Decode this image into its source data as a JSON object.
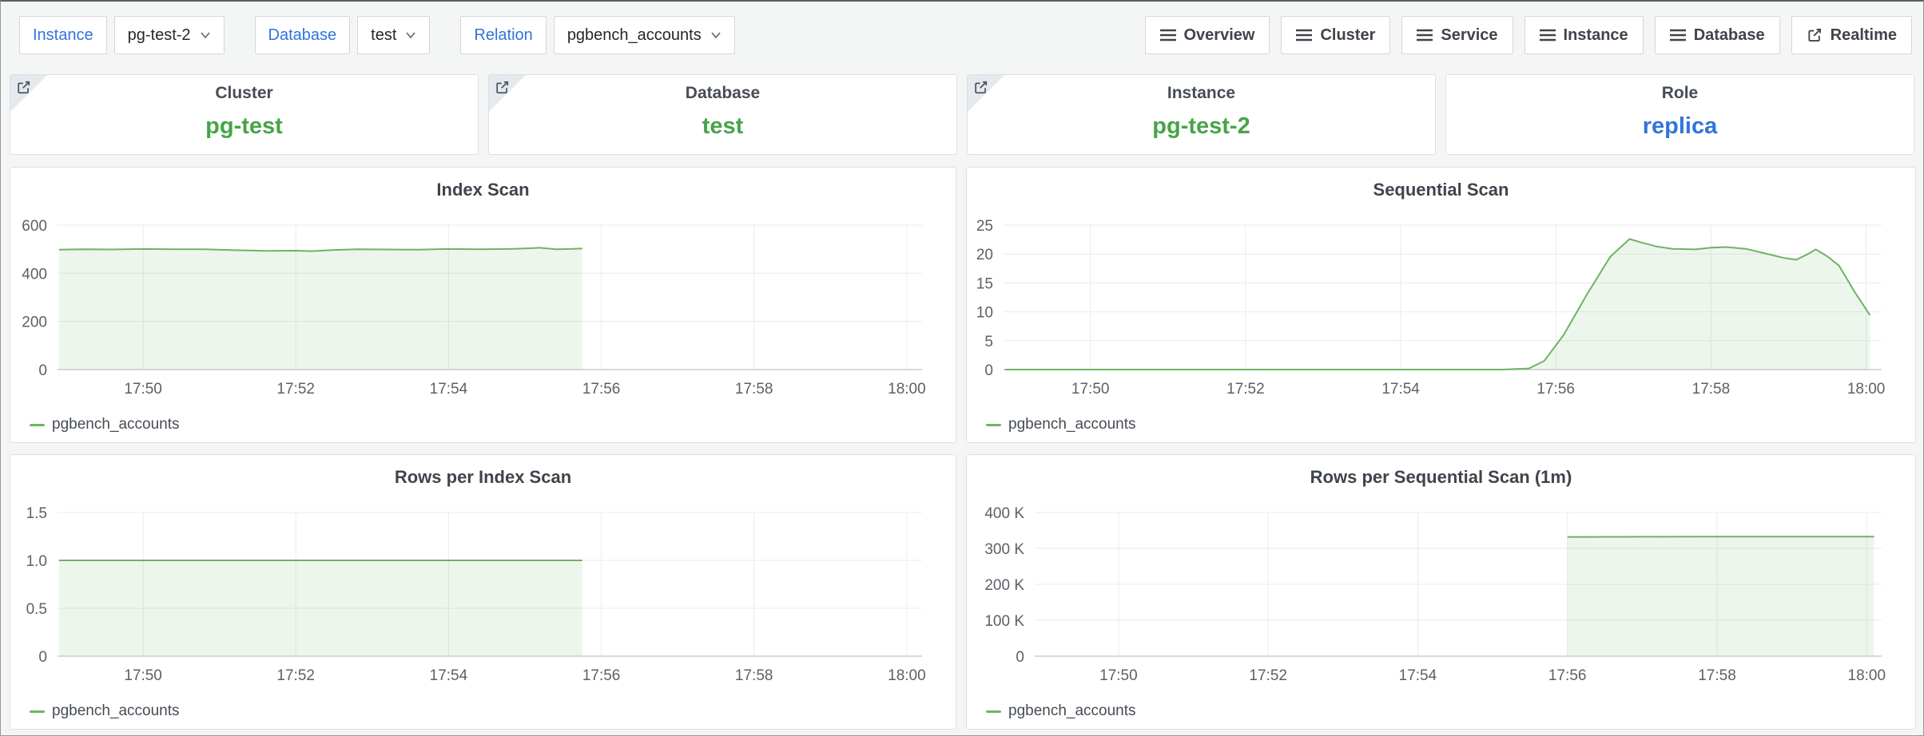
{
  "topbar": {
    "variables": [
      {
        "label": "Instance",
        "value": "pg-test-2"
      },
      {
        "label": "Database",
        "value": "test"
      },
      {
        "label": "Relation",
        "value": "pgbench_accounts"
      }
    ],
    "nav_buttons": [
      {
        "label": "Overview",
        "icon": "menu-icon"
      },
      {
        "label": "Cluster",
        "icon": "menu-icon"
      },
      {
        "label": "Service",
        "icon": "menu-icon"
      },
      {
        "label": "Instance",
        "icon": "menu-icon"
      },
      {
        "label": "Database",
        "icon": "menu-icon"
      },
      {
        "label": "Realtime",
        "icon": "external-link-icon"
      }
    ]
  },
  "stats": [
    {
      "title": "Cluster",
      "value": "pg-test",
      "color": "#47a447",
      "has_link": true
    },
    {
      "title": "Database",
      "value": "test",
      "color": "#47a447",
      "has_link": true
    },
    {
      "title": "Instance",
      "value": "pg-test-2",
      "color": "#47a447",
      "has_link": true
    },
    {
      "title": "Role",
      "value": "replica",
      "color": "#3274d9",
      "has_link": false
    }
  ],
  "colors": {
    "page_bg": "#f4f5f5",
    "panel_bg": "#ffffff",
    "panel_border": "#dde0e4",
    "accent_blue": "#3274d9",
    "stat_green": "#47a447",
    "chart_line_green": "#6fb364",
    "chart_fill_green": "rgba(111,179,100,0.12)",
    "grid": "#ebebed"
  },
  "chart_data": [
    {
      "type": "area",
      "title": "Index Scan",
      "x_unit": "minutes_of_day",
      "x_range": [
        1068.88,
        1080.2
      ],
      "y_range": [
        0,
        600
      ],
      "x_ticks": [
        {
          "t": 1070,
          "label": "17:50"
        },
        {
          "t": 1072,
          "label": "17:52"
        },
        {
          "t": 1074,
          "label": "17:54"
        },
        {
          "t": 1076,
          "label": "17:56"
        },
        {
          "t": 1078,
          "label": "17:58"
        },
        {
          "t": 1080,
          "label": "18:00"
        }
      ],
      "y_ticks": [
        {
          "v": 0,
          "label": "0"
        },
        {
          "v": 200,
          "label": "200"
        },
        {
          "v": 400,
          "label": "400"
        },
        {
          "v": 600,
          "label": "600"
        }
      ],
      "fill_color": "rgba(111,179,100,0.12)",
      "series": [
        {
          "name": "pgbench_accounts",
          "color": "#6fb364",
          "points": [
            [
              1068.9,
              498
            ],
            [
              1069.2,
              500
            ],
            [
              1069.6,
              499
            ],
            [
              1070.0,
              501
            ],
            [
              1070.4,
              500
            ],
            [
              1070.8,
              500
            ],
            [
              1071.2,
              496
            ],
            [
              1071.6,
              493
            ],
            [
              1072.0,
              494
            ],
            [
              1072.2,
              492
            ],
            [
              1072.5,
              497
            ],
            [
              1072.8,
              500
            ],
            [
              1073.2,
              499
            ],
            [
              1073.6,
              498
            ],
            [
              1074.0,
              501
            ],
            [
              1074.4,
              500
            ],
            [
              1074.8,
              501
            ],
            [
              1075.0,
              503
            ],
            [
              1075.2,
              506
            ],
            [
              1075.4,
              500
            ],
            [
              1075.6,
              501
            ],
            [
              1075.75,
              503
            ]
          ]
        }
      ]
    },
    {
      "type": "area",
      "title": "Sequential Scan",
      "x_unit": "minutes_of_day",
      "x_range": [
        1068.88,
        1080.2
      ],
      "y_range": [
        0,
        25
      ],
      "x_ticks": [
        {
          "t": 1070,
          "label": "17:50"
        },
        {
          "t": 1072,
          "label": "17:52"
        },
        {
          "t": 1074,
          "label": "17:54"
        },
        {
          "t": 1076,
          "label": "17:56"
        },
        {
          "t": 1078,
          "label": "17:58"
        },
        {
          "t": 1080,
          "label": "18:00"
        }
      ],
      "y_ticks": [
        {
          "v": 0,
          "label": "0"
        },
        {
          "v": 5,
          "label": "5"
        },
        {
          "v": 10,
          "label": "10"
        },
        {
          "v": 15,
          "label": "15"
        },
        {
          "v": 20,
          "label": "20"
        },
        {
          "v": 25,
          "label": "25"
        }
      ],
      "fill_color": "rgba(111,179,100,0.12)",
      "series": [
        {
          "name": "pgbench_accounts",
          "color": "#6fb364",
          "points": [
            [
              1068.9,
              0
            ],
            [
              1070,
              0
            ],
            [
              1072,
              0
            ],
            [
              1074,
              0
            ],
            [
              1075.3,
              0
            ],
            [
              1075.65,
              0.2
            ],
            [
              1075.85,
              1.5
            ],
            [
              1076.1,
              6
            ],
            [
              1076.4,
              13
            ],
            [
              1076.7,
              19.5
            ],
            [
              1076.95,
              22.6
            ],
            [
              1077.1,
              22.0
            ],
            [
              1077.3,
              21.3
            ],
            [
              1077.5,
              20.9
            ],
            [
              1077.8,
              20.8
            ],
            [
              1078.0,
              21.1
            ],
            [
              1078.2,
              21.2
            ],
            [
              1078.45,
              20.9
            ],
            [
              1078.7,
              20.1
            ],
            [
              1078.95,
              19.3
            ],
            [
              1079.1,
              19.0
            ],
            [
              1079.25,
              20.0
            ],
            [
              1079.35,
              20.8
            ],
            [
              1079.5,
              19.6
            ],
            [
              1079.65,
              18.0
            ],
            [
              1079.85,
              13.5
            ],
            [
              1080.05,
              9.4
            ]
          ]
        }
      ]
    },
    {
      "type": "area",
      "title": "Rows per Index Scan",
      "x_unit": "minutes_of_day",
      "x_range": [
        1068.88,
        1080.2
      ],
      "y_range": [
        0,
        1.5
      ],
      "x_ticks": [
        {
          "t": 1070,
          "label": "17:50"
        },
        {
          "t": 1072,
          "label": "17:52"
        },
        {
          "t": 1074,
          "label": "17:54"
        },
        {
          "t": 1076,
          "label": "17:56"
        },
        {
          "t": 1078,
          "label": "17:58"
        },
        {
          "t": 1080,
          "label": "18:00"
        }
      ],
      "y_ticks": [
        {
          "v": 0,
          "label": "0"
        },
        {
          "v": 0.5,
          "label": "0.5"
        },
        {
          "v": 1.0,
          "label": "1.0"
        },
        {
          "v": 1.5,
          "label": "1.5"
        }
      ],
      "fill_color": "rgba(111,179,100,0.12)",
      "series": [
        {
          "name": "pgbench_accounts",
          "color": "#6fb364",
          "points": [
            [
              1068.9,
              1.0
            ],
            [
              1072,
              1.0
            ],
            [
              1074,
              1.0
            ],
            [
              1075.75,
              1.0
            ]
          ]
        }
      ]
    },
    {
      "type": "area",
      "title": "Rows per Sequential Scan (1m)",
      "x_unit": "minutes_of_day",
      "x_range": [
        1068.88,
        1080.2
      ],
      "y_range": [
        0,
        400000
      ],
      "x_ticks": [
        {
          "t": 1070,
          "label": "17:50"
        },
        {
          "t": 1072,
          "label": "17:52"
        },
        {
          "t": 1074,
          "label": "17:54"
        },
        {
          "t": 1076,
          "label": "17:56"
        },
        {
          "t": 1078,
          "label": "17:58"
        },
        {
          "t": 1080,
          "label": "18:00"
        }
      ],
      "y_ticks": [
        {
          "v": 0,
          "label": "0"
        },
        {
          "v": 100000,
          "label": "100 K"
        },
        {
          "v": 200000,
          "label": "200 K"
        },
        {
          "v": 300000,
          "label": "300 K"
        },
        {
          "v": 400000,
          "label": "400 K"
        }
      ],
      "fill_color": "rgba(111,179,100,0.12)",
      "series": [
        {
          "name": "pgbench_accounts",
          "color": "#6fb364",
          "points": [
            [
              1076.0,
              332000
            ],
            [
              1077.0,
              332500
            ],
            [
              1078.0,
              332800
            ],
            [
              1079.0,
              333000
            ],
            [
              1080.1,
              333000
            ]
          ]
        }
      ]
    }
  ]
}
